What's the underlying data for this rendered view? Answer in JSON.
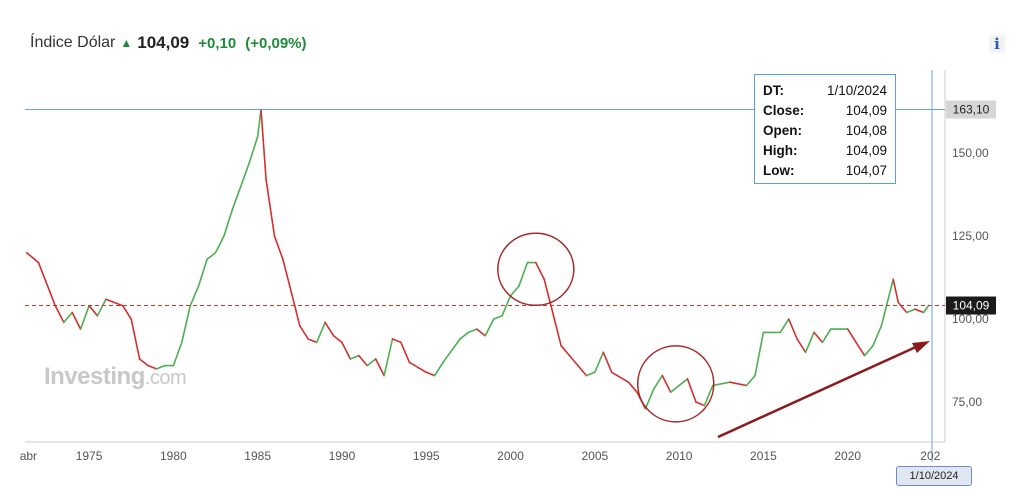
{
  "header": {
    "name": "Índice Dólar",
    "price": "104,09",
    "change": "+0,10",
    "change_pct": "(+0,09%)",
    "up_color": "#1f8a3a"
  },
  "info_button": "i",
  "tooltip": {
    "rows": [
      {
        "label": "DT:",
        "value": "1/10/2024"
      },
      {
        "label": "Close:",
        "value": "104,09"
      },
      {
        "label": "Open:",
        "value": "104,08"
      },
      {
        "label": "High:",
        "value": "104,09"
      },
      {
        "label": "Low:",
        "value": "104,07"
      }
    ]
  },
  "watermark": {
    "brand": "Investing",
    "suffix": ".com"
  },
  "crosshair_date": "1/10/2024",
  "chart_data": {
    "type": "line",
    "title": "",
    "xlabel": "",
    "ylabel": "",
    "x_ticks": [
      "abr",
      "1975",
      "1980",
      "1985",
      "1990",
      "1995",
      "2000",
      "2005",
      "2010",
      "2015",
      "2020",
      "202"
    ],
    "y_ticks": [
      "75,00",
      "100,00",
      "125,00",
      "150,00"
    ],
    "ylim": [
      63,
      175
    ],
    "xlim": [
      1971.2,
      2025.0
    ],
    "grid": false,
    "high_marker": {
      "value": 163.1,
      "label": "163,10"
    },
    "current_marker": {
      "value": 104.09,
      "label": "104,09"
    },
    "series": [
      {
        "x": [
          1971.3,
          1972.0,
          1973.0,
          1973.5,
          1974.0,
          1974.5,
          1975.0,
          1975.5,
          1976.0,
          1977.0,
          1977.5,
          1978.0,
          1978.5,
          1979.0,
          1979.5,
          1980.0,
          1980.5,
          1981.0,
          1981.5,
          1982.0,
          1982.5,
          1983.0,
          1983.5,
          1984.0,
          1984.5,
          1985.0,
          1985.2,
          1985.5,
          1986.0,
          1986.5,
          1987.0,
          1987.5,
          1988.0,
          1988.5,
          1989.0,
          1989.5,
          1990.0,
          1990.5,
          1991.0,
          1991.5,
          1992.0,
          1992.5,
          1993.0,
          1993.5,
          1994.0,
          1995.0,
          1995.5,
          1996.0,
          1997.0,
          1997.5,
          1998.0,
          1998.5,
          1999.0,
          1999.5,
          2000.0,
          2000.5,
          2001.0,
          2001.5,
          2002.0,
          2002.5,
          2003.0,
          2003.5,
          2004.0,
          2004.5,
          2005.0,
          2005.5,
          2006.0,
          2007.0,
          2007.5,
          2008.0,
          2008.5,
          2009.0,
          2009.5,
          2010.0,
          2010.5,
          2011.0,
          2011.5,
          2012.0,
          2013.0,
          2014.0,
          2014.5,
          2015.0,
          2016.0,
          2016.5,
          2017.0,
          2017.5,
          2018.0,
          2018.5,
          2019.0,
          2020.0,
          2020.5,
          2021.0,
          2021.5,
          2022.0,
          2022.7,
          2023.0,
          2023.5,
          2024.0,
          2024.5,
          2024.8
        ],
        "y": [
          120,
          117,
          104,
          99,
          102,
          97,
          104,
          101,
          106,
          104,
          100,
          88,
          86,
          85,
          86,
          86,
          93,
          104,
          110,
          118,
          120,
          125,
          133,
          140,
          147,
          155,
          163.1,
          142,
          125,
          118,
          108,
          98,
          94,
          93,
          99,
          95,
          93,
          88,
          89,
          86,
          88,
          83,
          94,
          93,
          87,
          84,
          83,
          87,
          94,
          96,
          97,
          95,
          100,
          101,
          107,
          110,
          117,
          117,
          112,
          102,
          92,
          89,
          86,
          83,
          84,
          90,
          84,
          81,
          78,
          73,
          79,
          83,
          78,
          80,
          82,
          75,
          74,
          80,
          81,
          80,
          83,
          96,
          96,
          100,
          94,
          90,
          96,
          93,
          97,
          97,
          93,
          89,
          92,
          98,
          112,
          105,
          102,
          103,
          102,
          104.09
        ]
      }
    ],
    "colors": {
      "up": "#4caf50",
      "down": "#d32f2f",
      "crosshair": "#6aa3e0",
      "high_line": "#6aa3e0",
      "current_line": "#c0392b"
    }
  }
}
